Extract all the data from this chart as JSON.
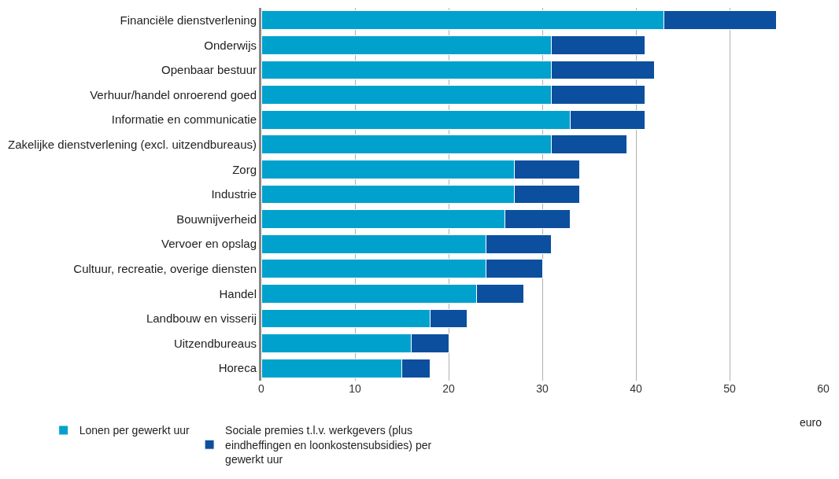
{
  "chart_data": {
    "type": "bar",
    "orientation": "horizontal",
    "stacked": true,
    "categories": [
      "Financiële dienstverlening",
      "Onderwijs",
      "Openbaar bestuur",
      "Verhuur/handel onroerend goed",
      "Informatie en communicatie",
      "Zakelijke dienstverlening (excl. uitzendbureaus)",
      "Zorg",
      "Industrie",
      "Bouwnijverheid",
      "Vervoer en opslag",
      "Cultuur, recreatie, overige diensten",
      "Handel",
      "Landbouw en visserij",
      "Uitzendbureaus",
      "Horeca"
    ],
    "series": [
      {
        "name": "Lonen per gewerkt uur",
        "color": "#00a1cd",
        "values": [
          43,
          31,
          31,
          31,
          33,
          31,
          27,
          27,
          26,
          24,
          24,
          23,
          18,
          16,
          15
        ]
      },
      {
        "name": "Sociale premies t.l.v. werkgevers (plus eindheffingen en loonkostensubsidies) per gewerkt uur",
        "color": "#0c4f9e",
        "values": [
          12,
          10,
          11,
          10,
          8,
          8,
          7,
          7,
          7,
          7,
          6,
          5,
          4,
          4,
          3
        ]
      }
    ],
    "xlabel": "euro",
    "xlim": [
      0,
      60
    ],
    "xticks": [
      0,
      10,
      20,
      30,
      40,
      50,
      60
    ],
    "grid": "x",
    "legend": "bottom"
  }
}
